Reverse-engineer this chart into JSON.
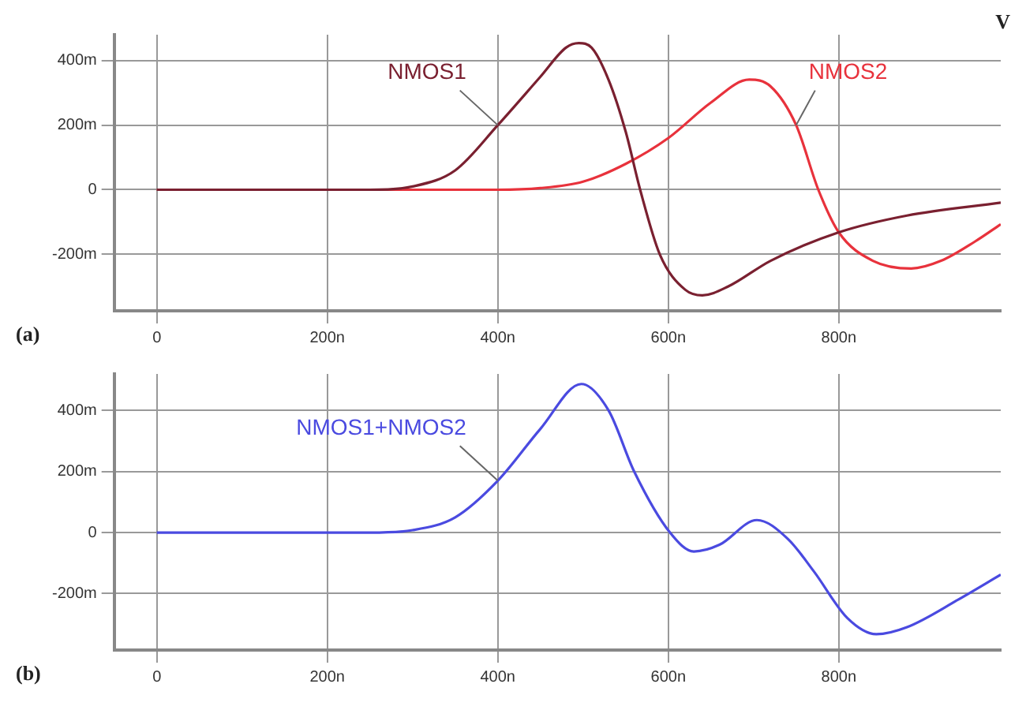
{
  "chart_data": [
    {
      "type": "line",
      "xlim": [
        -50,
        990
      ],
      "ylim": [
        -375,
        480
      ],
      "xticks": [
        {
          "value": 0,
          "label": "0"
        },
        {
          "value": 200,
          "label": "200n"
        },
        {
          "value": 400,
          "label": "400n"
        },
        {
          "value": 600,
          "label": "600n"
        },
        {
          "value": 800,
          "label": "800n"
        }
      ],
      "yticks": [
        {
          "value": -200,
          "label": "-200m"
        },
        {
          "value": 0,
          "label": "0"
        },
        {
          "value": 200,
          "label": "200m"
        },
        {
          "value": 400,
          "label": "400m"
        }
      ],
      "grid": true,
      "legend": false,
      "marker": "none",
      "line_style": "solid",
      "series": [
        {
          "name": "NMOS1",
          "color": "#7a2030",
          "x": [
            0,
            250,
            300,
            350,
            400,
            450,
            480,
            495,
            510,
            530,
            550,
            567,
            590,
            620,
            640,
            670,
            720,
            800,
            880,
            990
          ],
          "values": [
            0,
            0,
            10,
            60,
            200,
            350,
            440,
            454,
            440,
            340,
            180,
            0,
            -200,
            -310,
            -327,
            -300,
            -220,
            -132,
            -80,
            -40
          ]
        },
        {
          "name": "NMOS2",
          "color": "#e8323c",
          "x": [
            0,
            400,
            450,
            500,
            550,
            600,
            650,
            695,
            720,
            750,
            776,
            800,
            840,
            885,
            920,
            960,
            990
          ],
          "values": [
            0,
            0,
            5,
            25,
            80,
            160,
            270,
            341,
            320,
            200,
            0,
            -132,
            -220,
            -244,
            -220,
            -160,
            -107
          ]
        }
      ],
      "annotations": [
        "(a)",
        "V"
      ]
    },
    {
      "type": "line",
      "xlim": [
        -50,
        990
      ],
      "ylim": [
        -385,
        520
      ],
      "xticks": [
        {
          "value": 0,
          "label": "0"
        },
        {
          "value": 200,
          "label": "200n"
        },
        {
          "value": 400,
          "label": "400n"
        },
        {
          "value": 600,
          "label": "600n"
        },
        {
          "value": 800,
          "label": "800n"
        }
      ],
      "yticks": [
        {
          "value": -200,
          "label": "-200m"
        },
        {
          "value": 0,
          "label": "0"
        },
        {
          "value": 200,
          "label": "200m"
        },
        {
          "value": 400,
          "label": "400m"
        }
      ],
      "grid": true,
      "legend": false,
      "marker": "none",
      "line_style": "solid",
      "series": [
        {
          "name": "NMOS1+NMOS2",
          "color": "#4a4ae0",
          "x": [
            0,
            250,
            300,
            350,
            400,
            450,
            498,
            530,
            560,
            602,
            630,
            660,
            704,
            740,
            771,
            810,
            844,
            880,
            940,
            990
          ],
          "values": [
            0,
            0,
            8,
            50,
            170,
            340,
            487,
            400,
            200,
            0,
            -62,
            -40,
            41,
            -20,
            -128,
            -280,
            -333,
            -310,
            -220,
            -138
          ]
        }
      ],
      "annotations": [
        "(b)"
      ]
    }
  ]
}
